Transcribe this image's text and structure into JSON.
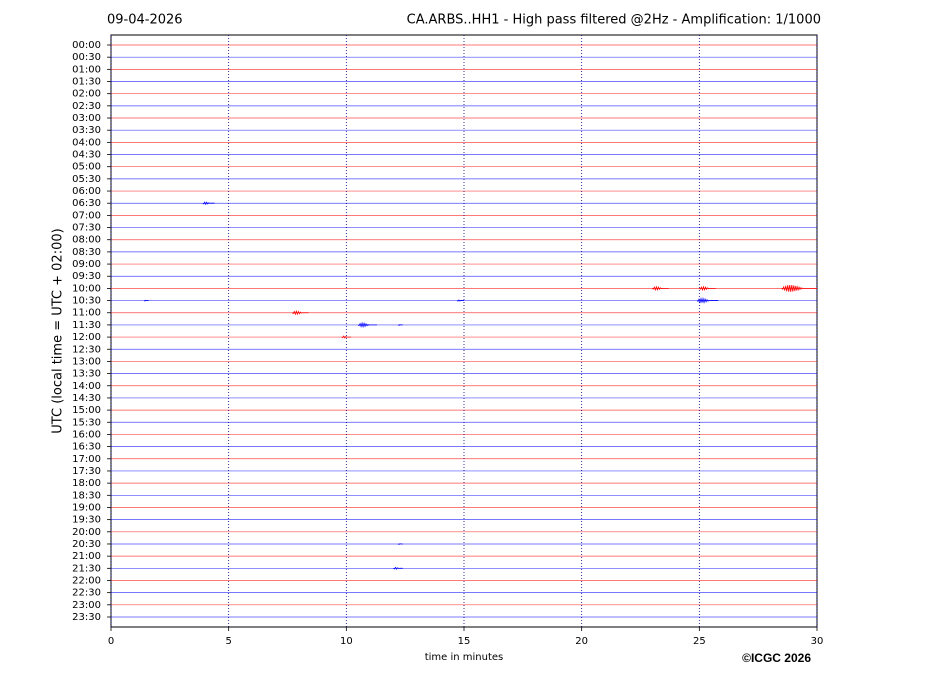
{
  "chart_data": {
    "type": "helicorder",
    "date": "09-04-2026",
    "title": "CA.ARBS..HH1 - High pass filtered @2Hz - Amplification: 1/1000",
    "ylabel": "UTC (local time = UTC + 02:00)",
    "xlabel": "time in minutes",
    "credit": "©ICGC 2026",
    "rows": [
      "00:00",
      "00:30",
      "01:00",
      "01:30",
      "02:00",
      "02:30",
      "03:00",
      "03:30",
      "04:00",
      "04:30",
      "05:00",
      "05:30",
      "06:00",
      "06:30",
      "07:00",
      "07:30",
      "08:00",
      "08:30",
      "09:00",
      "09:30",
      "10:00",
      "10:30",
      "11:00",
      "11:30",
      "12:00",
      "12:30",
      "13:00",
      "13:30",
      "14:00",
      "14:30",
      "15:00",
      "15:30",
      "16:00",
      "16:30",
      "17:00",
      "17:30",
      "18:00",
      "18:30",
      "19:00",
      "19:30",
      "20:00",
      "20:30",
      "21:00",
      "21:30",
      "22:00",
      "22:30",
      "23:00",
      "23:30"
    ],
    "trace_colors": [
      "#ff0000",
      "#0000ff"
    ],
    "xlim": [
      0,
      30
    ],
    "xticks": [
      0,
      5,
      10,
      15,
      20,
      25,
      30
    ],
    "grid": true,
    "events": [
      {
        "row": 13,
        "x": [
          3.9,
          4.4
        ]
      },
      {
        "row": 20,
        "x": [
          23.0,
          23.7
        ]
      },
      {
        "row": 20,
        "x": [
          25.0,
          25.7
        ]
      },
      {
        "row": 20,
        "x": [
          28.5,
          30
        ]
      },
      {
        "row": 21,
        "x": [
          1.4,
          1.6
        ]
      },
      {
        "row": 21,
        "x": [
          14.7,
          15.0
        ]
      },
      {
        "row": 21,
        "x": [
          24.9,
          25.8
        ]
      },
      {
        "row": 22,
        "x": [
          7.7,
          8.4
        ]
      },
      {
        "row": 23,
        "x": [
          10.5,
          11.3
        ]
      },
      {
        "row": 23,
        "x": [
          12.2,
          12.4
        ]
      },
      {
        "row": 24,
        "x": [
          9.8,
          10.2
        ]
      },
      {
        "row": 41,
        "x": [
          12.2,
          12.4
        ]
      },
      {
        "row": 43,
        "x": [
          12.0,
          12.4
        ]
      }
    ]
  }
}
